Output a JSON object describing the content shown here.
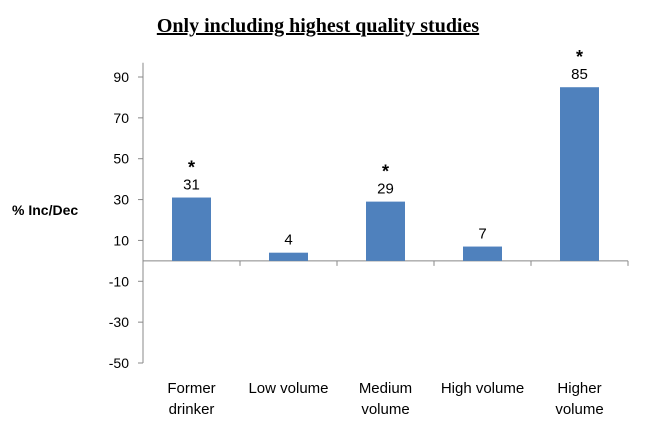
{
  "chart_data": {
    "type": "bar",
    "title": "Only including highest quality studies",
    "ylabel": "% Inc/Dec",
    "xlabel": "",
    "ylim": [
      -50,
      97
    ],
    "yticks": [
      90,
      70,
      50,
      30,
      10,
      -10,
      -30,
      -50
    ],
    "grid": false,
    "bar_color": "#4f81bd",
    "categories": [
      [
        "Former",
        "drinker"
      ],
      [
        "Low volume"
      ],
      [
        "Medium",
        "volume"
      ],
      [
        "High volume"
      ],
      [
        "Higher",
        "volume"
      ]
    ],
    "values": [
      31,
      4,
      29,
      7,
      85
    ],
    "data_labels": [
      "31",
      "4",
      "29",
      "7",
      "85"
    ],
    "significant": [
      true,
      false,
      true,
      false,
      true
    ],
    "significance_marker": "*"
  }
}
